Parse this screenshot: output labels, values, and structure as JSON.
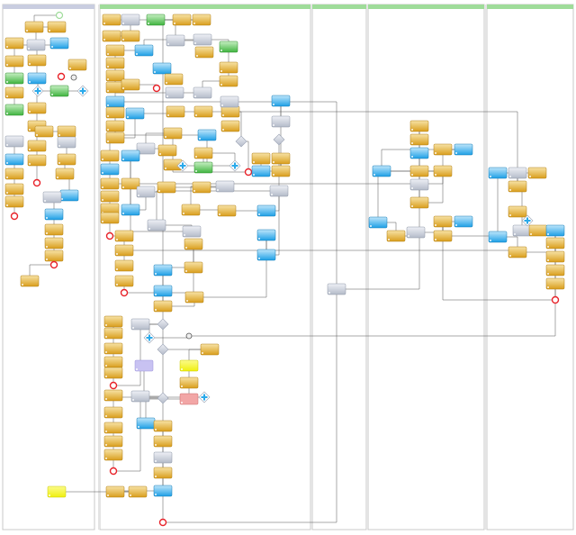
{
  "diagram": {
    "type": "bpmn-process",
    "lanes": [
      {
        "title": "",
        "header_color": "#c9cde0"
      },
      {
        "title": "",
        "header_color": "#9fdc9a"
      },
      {
        "title": "",
        "header_color": "#9fdc9a"
      },
      {
        "title": "",
        "header_color": "#9fdc9a"
      },
      {
        "title": "",
        "header_color": "#9fdc9a"
      }
    ],
    "colors": {
      "task_orange": "#e0a928",
      "task_blue": "#2aa9ea",
      "task_green": "#4fbf4f",
      "task_silver": "#c4cad6",
      "task_yellow": "#f4f41a",
      "task_purple": "#c8c2f2",
      "task_pink": "#f2a6a6",
      "end_event": "#e8232a",
      "start_event": "#9fdc9a",
      "gateway": "#c4cad6",
      "gateway_parallel": "#2aa9ea",
      "connector": "#555555"
    }
  }
}
